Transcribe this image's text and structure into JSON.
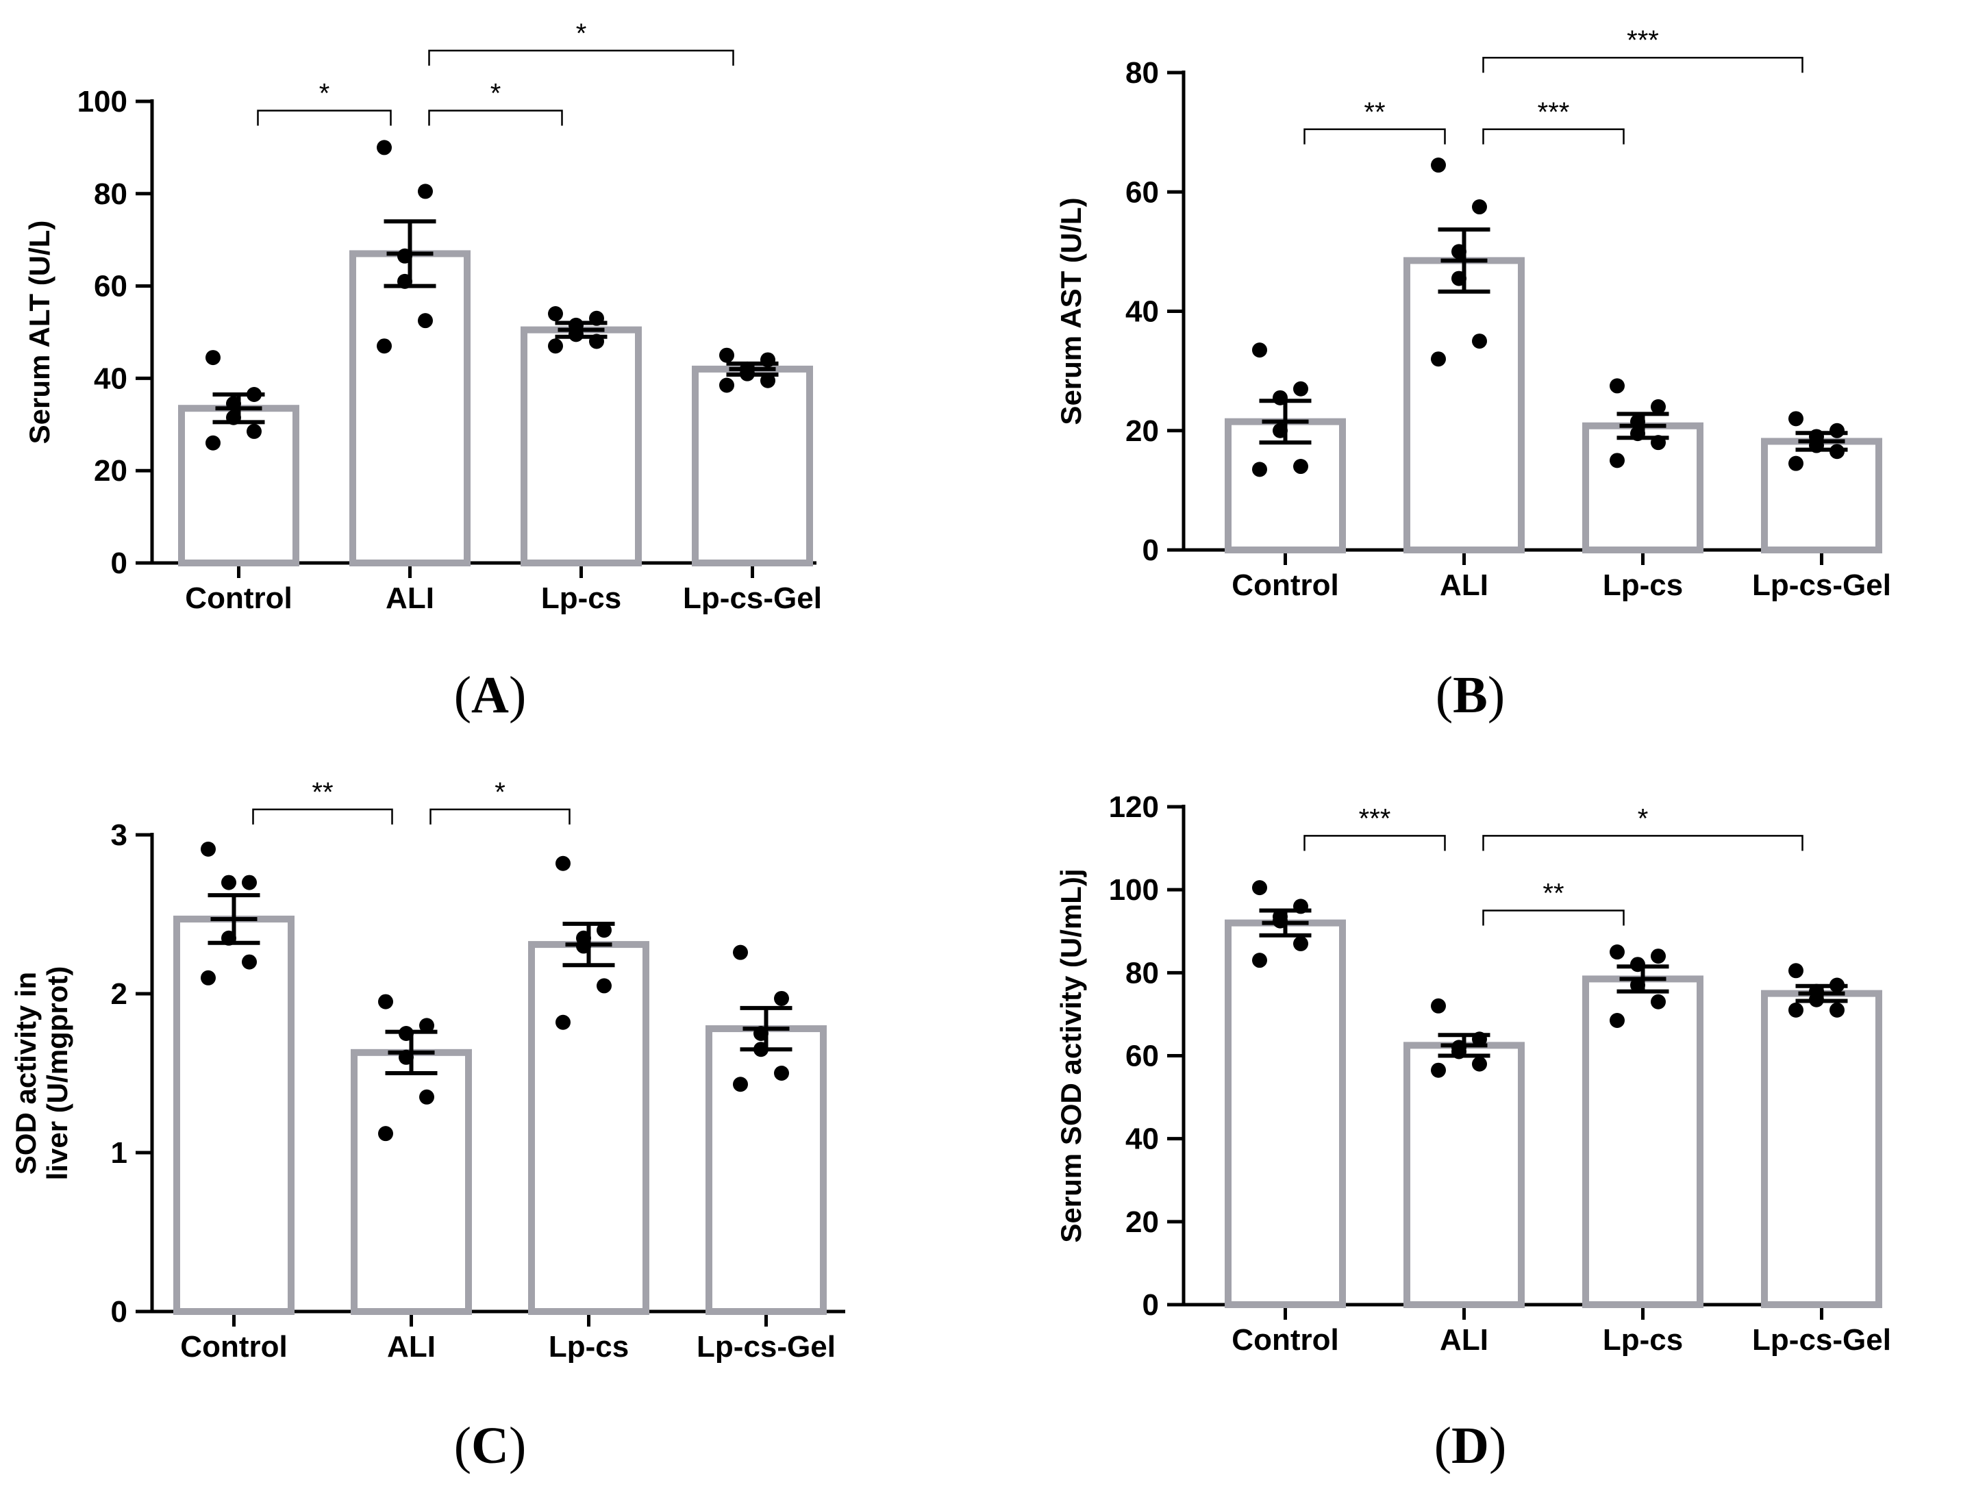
{
  "chart_data": [
    {
      "panel": "A",
      "label": "A",
      "type": "bar",
      "ylabel": "Serum ALT (U/L)",
      "ylim": [
        0,
        100
      ],
      "yticks": [
        0,
        20,
        40,
        60,
        80,
        100
      ],
      "categories": [
        "Control",
        "ALI",
        "Lp-cs",
        "Lp-cs-Gel"
      ],
      "values": [
        33.5,
        67,
        50.5,
        42
      ],
      "sem": [
        3,
        7,
        1.5,
        1.2
      ],
      "points": [
        [
          44.5,
          36.5,
          34.5,
          31.5,
          28.5,
          26
        ],
        [
          90,
          80.5,
          66.5,
          61,
          52.5,
          47
        ],
        [
          54,
          53,
          51.5,
          49.5,
          48,
          47
        ],
        [
          45,
          44,
          42,
          41,
          39.5,
          38.5
        ]
      ],
      "significance": [
        {
          "from": 0,
          "to": 1,
          "label": "*",
          "y": 98
        },
        {
          "from": 1,
          "to": 2,
          "label": "*",
          "y": 98
        },
        {
          "from": 1,
          "to": 3,
          "label": "*",
          "y": 111
        }
      ]
    },
    {
      "panel": "B",
      "label": "B",
      "type": "bar",
      "ylabel": "Serum AST (U/L)",
      "ylim": [
        0,
        80
      ],
      "yticks": [
        0,
        20,
        40,
        60,
        80
      ],
      "categories": [
        "Control",
        "ALI",
        "Lp-cs",
        "Lp-cs-Gel"
      ],
      "values": [
        21.5,
        48.5,
        20.8,
        18.2
      ],
      "sem": [
        3.5,
        5.2,
        2,
        1.4
      ],
      "points": [
        [
          33.5,
          27,
          25.5,
          20,
          14,
          13.5
        ],
        [
          64.5,
          57.5,
          50,
          45.5,
          35,
          32
        ],
        [
          27.5,
          24,
          21.5,
          19.5,
          18,
          15
        ],
        [
          22,
          20,
          19,
          17.5,
          16.5,
          14.5
        ]
      ],
      "significance": [
        {
          "from": 0,
          "to": 1,
          "label": "**",
          "y": 70.5
        },
        {
          "from": 1,
          "to": 2,
          "label": "***",
          "y": 70.5
        },
        {
          "from": 1,
          "to": 3,
          "label": "***",
          "y": 82.5
        }
      ]
    },
    {
      "panel": "C",
      "label": "C",
      "type": "bar",
      "ylabel": "SOD activity in liver (U/mgprot)",
      "ylabel_lines": [
        "SOD activity in",
        "liver (U/mgprot)"
      ],
      "ylim": [
        0,
        3
      ],
      "yticks": [
        0,
        1,
        2,
        3
      ],
      "categories": [
        "Control",
        "ALI",
        "Lp-cs",
        "Lp-cs-Gel"
      ],
      "values": [
        2.47,
        1.63,
        2.31,
        1.78
      ],
      "sem": [
        0.15,
        0.13,
        0.13,
        0.13
      ],
      "points": [
        [
          2.91,
          2.7,
          2.7,
          2.35,
          2.2,
          2.1
        ],
        [
          1.95,
          1.8,
          1.75,
          1.6,
          1.35,
          1.12
        ],
        [
          2.82,
          2.4,
          2.3,
          2.35,
          2.05,
          1.82
        ],
        [
          2.26,
          1.97,
          1.75,
          1.65,
          1.5,
          1.43
        ]
      ],
      "significance": [
        {
          "from": 0,
          "to": 1,
          "label": "**",
          "y": 3.16
        },
        {
          "from": 1,
          "to": 2,
          "label": "*",
          "y": 3.16
        }
      ]
    },
    {
      "panel": "D",
      "label": "D",
      "type": "bar",
      "ylabel": "Serum SOD activity (U/mL)j",
      "ylim": [
        0,
        120
      ],
      "yticks": [
        0,
        20,
        40,
        60,
        80,
        100,
        120
      ],
      "categories": [
        "Control",
        "ALI",
        "Lp-cs",
        "Lp-cs-Gel"
      ],
      "values": [
        92,
        62.5,
        78.5,
        75
      ],
      "sem": [
        3,
        2.5,
        3,
        1.8
      ],
      "points": [
        [
          100.5,
          96,
          93.5,
          92.5,
          87,
          83
        ],
        [
          72,
          64,
          62,
          61,
          58,
          56.5
        ],
        [
          85,
          84,
          82,
          77,
          73,
          68.5
        ],
        [
          80.5,
          77,
          75.5,
          73.5,
          71,
          71
        ]
      ],
      "significance": [
        {
          "from": 0,
          "to": 1,
          "label": "***",
          "y": 113
        },
        {
          "from": 1,
          "to": 2,
          "label": "**",
          "y": 95
        },
        {
          "from": 1,
          "to": 3,
          "label": "*",
          "y": 113
        }
      ]
    }
  ]
}
